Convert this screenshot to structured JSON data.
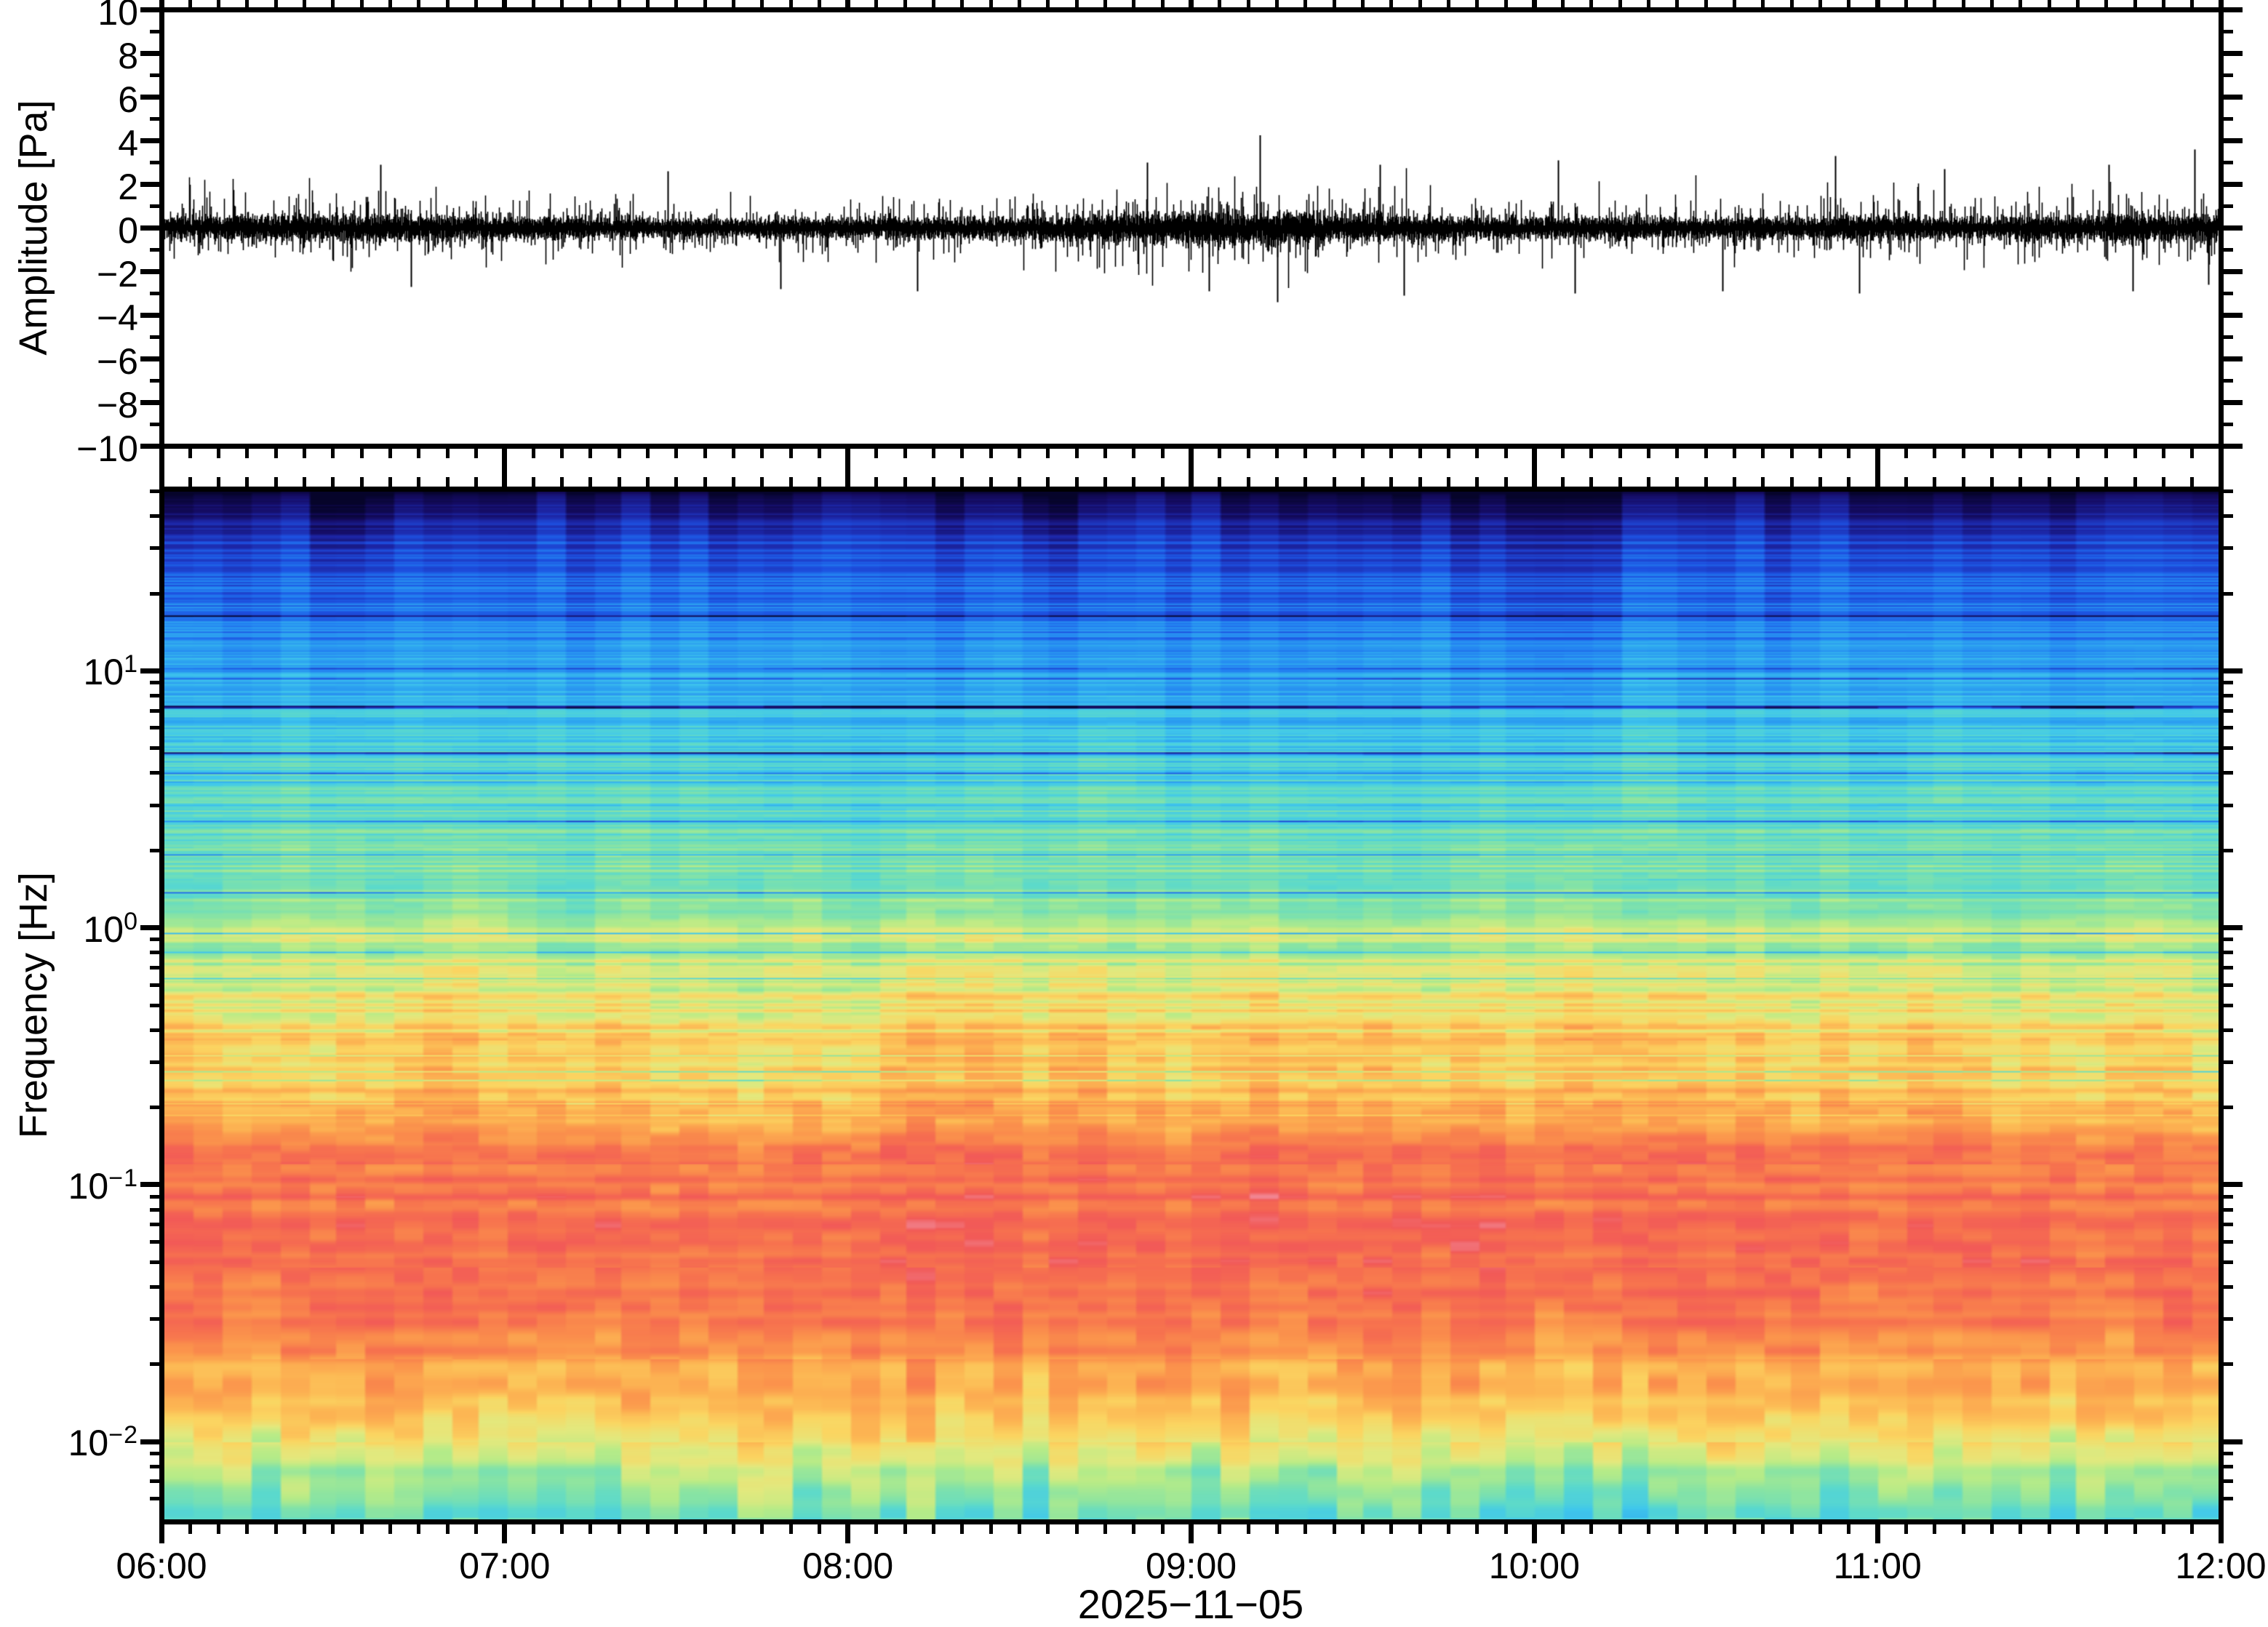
{
  "figure": {
    "background": "#ffffff",
    "frame_color": "#000000",
    "description": "Infrasound pressure trace with log-frequency spectrogram, 06:00-12:00 UTC"
  },
  "waveform_panel": {
    "ylabel": "Amplitude [Pa]",
    "ylim": [
      -10,
      10
    ],
    "ytick_major_step": 2,
    "ytick_minor_step": 1,
    "ytick_labels": [
      "10",
      "8",
      "6",
      "4",
      "2",
      "0",
      "−2",
      "−4",
      "−6",
      "−8",
      "−10"
    ],
    "trace_color": "#000000"
  },
  "spectrogram_panel": {
    "ylabel": "Frequency [Hz]",
    "yscale": "log",
    "flim_hz": [
      0.005,
      50
    ],
    "ytick_labels": [
      {
        "base": "10",
        "sup": "1"
      },
      {
        "base": "10",
        "sup": "0"
      },
      {
        "base": "10",
        "sup": "−1"
      },
      {
        "base": "10",
        "sup": "−2"
      }
    ]
  },
  "xaxis": {
    "tick_labels": [
      "06:00",
      "07:00",
      "08:00",
      "09:00",
      "10:00",
      "11:00",
      "12:00"
    ],
    "minor_tick_minutes": 5,
    "date_label": "2025−11−05"
  },
  "chart_data": [
    {
      "type": "line",
      "panel": "waveform",
      "ylabel": "Amplitude [Pa]",
      "ylim": [
        -10,
        10
      ],
      "x_start": "06:00",
      "x_end": "12:00",
      "series_color": "#000000",
      "noise_band_pa": 0.7,
      "noise_std_pa": 0.45,
      "envelope": {
        "base": 0.5,
        "bumps": [
          {
            "t_hours": 3.1,
            "width_hours": 0.45,
            "gain": 0.16
          },
          {
            "t_hours": 4.95,
            "width_hours": 0.2,
            "gain": 0.12
          },
          {
            "t_hours": 5.75,
            "width_hours": 0.25,
            "gain": 0.14
          },
          {
            "t_hours": 0.7,
            "width_hours": 0.3,
            "gain": 0.06
          }
        ]
      },
      "peak_events": [
        {
          "t_hours": 0.63,
          "amp_pa": 2.9
        },
        {
          "t_hours": 0.72,
          "amp_pa": -2.7
        },
        {
          "t_hours": 1.47,
          "amp_pa": 2.6
        },
        {
          "t_hours": 1.8,
          "amp_pa": -2.8
        },
        {
          "t_hours": 2.2,
          "amp_pa": -2.9
        },
        {
          "t_hours": 2.87,
          "amp_pa": 3.0
        },
        {
          "t_hours": 3.05,
          "amp_pa": -2.9
        },
        {
          "t_hours": 3.2,
          "amp_pa": 4.25
        },
        {
          "t_hours": 3.25,
          "amp_pa": -3.4
        },
        {
          "t_hours": 3.55,
          "amp_pa": 2.9
        },
        {
          "t_hours": 3.62,
          "amp_pa": -3.1
        },
        {
          "t_hours": 4.07,
          "amp_pa": 3.1
        },
        {
          "t_hours": 4.12,
          "amp_pa": -3.0
        },
        {
          "t_hours": 4.55,
          "amp_pa": -2.9
        },
        {
          "t_hours": 4.88,
          "amp_pa": 3.3
        },
        {
          "t_hours": 4.95,
          "amp_pa": -3.0
        },
        {
          "t_hours": 5.2,
          "amp_pa": 2.7
        },
        {
          "t_hours": 5.68,
          "amp_pa": 2.9
        },
        {
          "t_hours": 5.75,
          "amp_pa": -2.9
        },
        {
          "t_hours": 5.93,
          "amp_pa": 3.6
        },
        {
          "t_hours": 5.97,
          "amp_pa": -2.6
        }
      ]
    },
    {
      "type": "heatmap",
      "panel": "spectrogram",
      "ylabel": "Frequency [Hz]",
      "yscale": "log",
      "flim_hz": [
        0.005,
        50
      ],
      "x_start": "06:00",
      "x_end": "12:00",
      "columns": 72,
      "column_minutes": 5,
      "colormap_stops": [
        [
          0.0,
          "#06042a"
        ],
        [
          0.05,
          "#150c63"
        ],
        [
          0.1,
          "#1d27a8"
        ],
        [
          0.16,
          "#1d50e0"
        ],
        [
          0.22,
          "#2380f2"
        ],
        [
          0.29,
          "#2fa8f0"
        ],
        [
          0.35,
          "#41c8ec"
        ],
        [
          0.42,
          "#5cdacc"
        ],
        [
          0.49,
          "#88e4a5"
        ],
        [
          0.55,
          "#b8ec88"
        ],
        [
          0.61,
          "#e4e97e"
        ],
        [
          0.67,
          "#fbd662"
        ],
        [
          0.73,
          "#fdb553"
        ],
        [
          0.8,
          "#fb924c"
        ],
        [
          0.87,
          "#f7724f"
        ],
        [
          0.94,
          "#f25a58"
        ],
        [
          1.0,
          "#f18f9f"
        ]
      ],
      "power_profile": [
        [
          0.0,
          0.01
        ],
        [
          0.012,
          0.05
        ],
        [
          0.035,
          0.12
        ],
        [
          0.08,
          0.18
        ],
        [
          0.14,
          0.25
        ],
        [
          0.2,
          0.32
        ],
        [
          0.3,
          0.42
        ],
        [
          0.4,
          0.5
        ],
        [
          0.45,
          0.57
        ],
        [
          0.5,
          0.63
        ],
        [
          0.56,
          0.7
        ],
        [
          0.62,
          0.79
        ],
        [
          0.66,
          0.85
        ],
        [
          0.7,
          0.88
        ],
        [
          0.75,
          0.89
        ],
        [
          0.8,
          0.855
        ],
        [
          0.84,
          0.79
        ],
        [
          0.88,
          0.73
        ],
        [
          0.92,
          0.65
        ],
        [
          0.95,
          0.56
        ],
        [
          0.975,
          0.49
        ],
        [
          1.0,
          0.45
        ]
      ],
      "stripe_amplitude": [
        [
          0.0,
          0.015
        ],
        [
          0.03,
          0.035
        ],
        [
          0.1,
          0.055
        ],
        [
          0.2,
          0.065
        ],
        [
          0.35,
          0.075
        ],
        [
          0.5,
          0.09
        ],
        [
          0.62,
          0.095
        ],
        [
          0.72,
          0.085
        ],
        [
          0.82,
          0.075
        ],
        [
          0.9,
          0.06
        ],
        [
          1.0,
          0.05
        ]
      ],
      "bands": [
        {
          "freq_hz": [
            3,
            50
          ],
          "appearance": "dark navy at 50 Hz grading through blue to cyan",
          "level": "low"
        },
        {
          "freq_hz": [
            0.5,
            3
          ],
          "appearance": "green to yellow with orange streaks",
          "level": "moderate"
        },
        {
          "freq_hz": [
            0.03,
            0.3
          ],
          "appearance": "orange-red band, strongest energy, pink patches",
          "level": "high"
        },
        {
          "freq_hz": [
            0.005,
            0.02
          ],
          "appearance": "yellow to green/aqua with occasional blue columns",
          "level": "moderate-low"
        }
      ]
    }
  ],
  "render": {
    "seed": 1975
  }
}
